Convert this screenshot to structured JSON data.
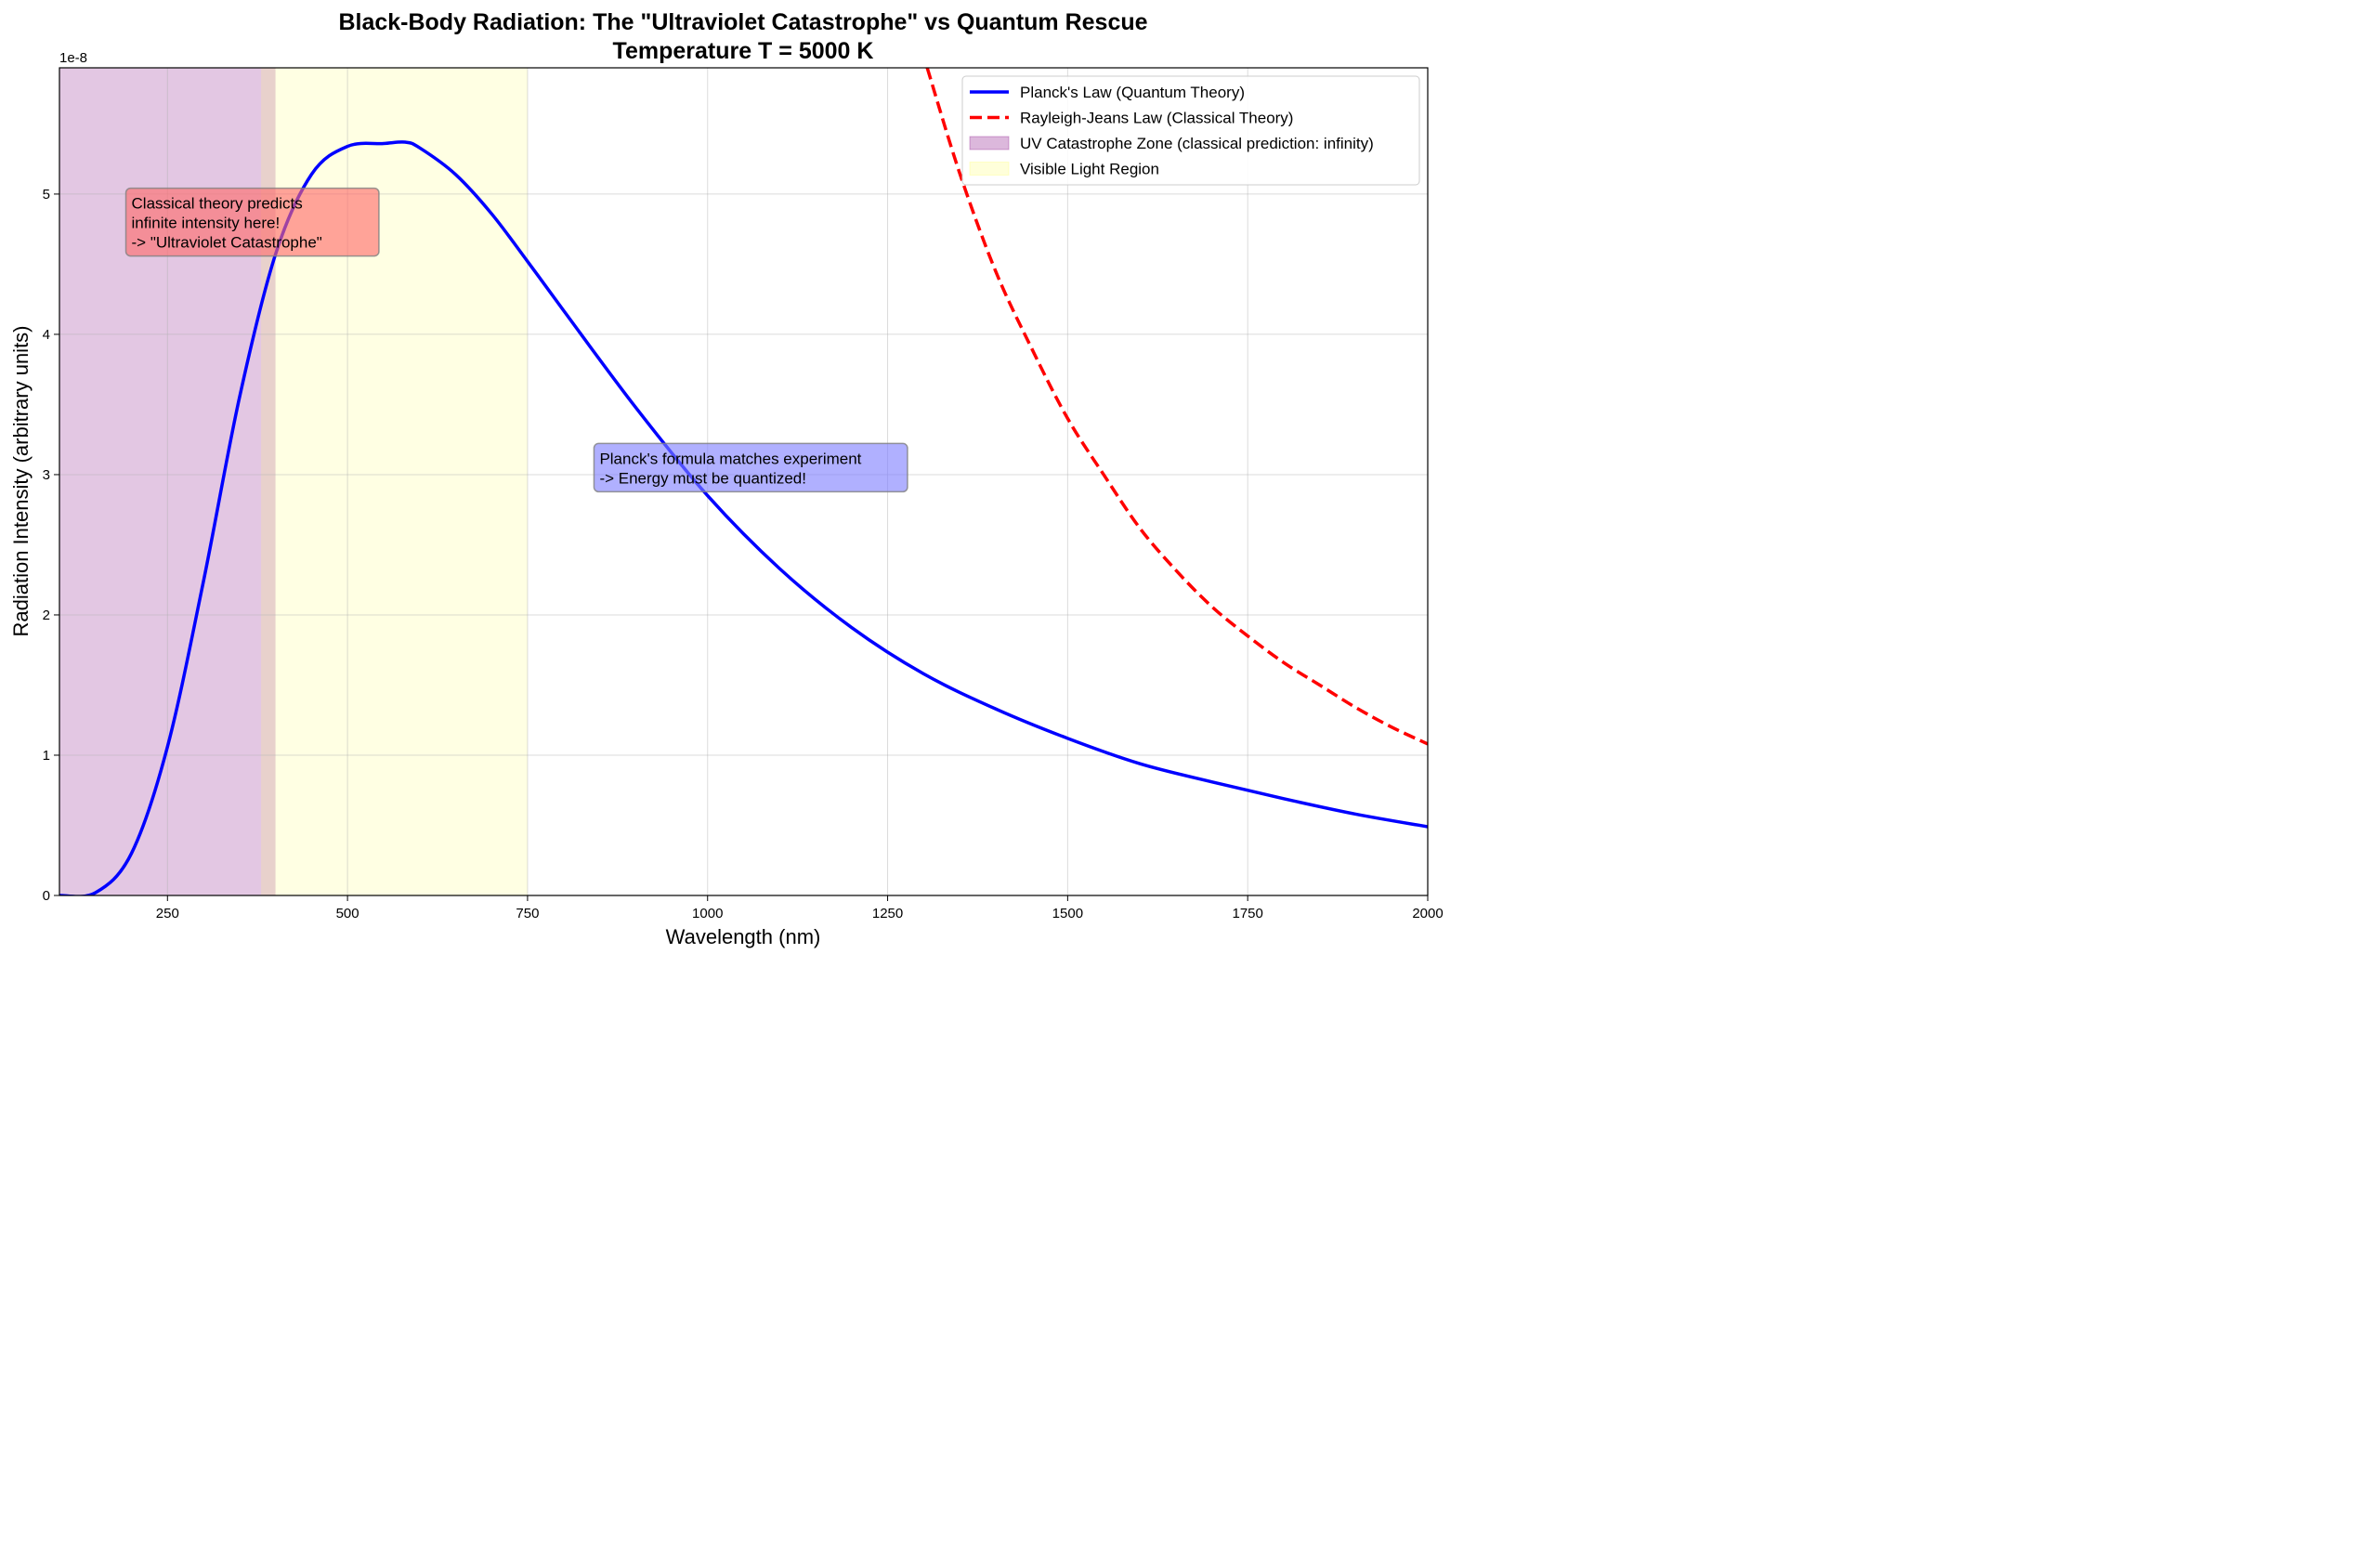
{
  "chart_data": {
    "type": "line",
    "title": "Black-Body Radiation: The \"Ultraviolet Catastrophe\" vs Quantum Rescue",
    "subtitle": "Temperature T = 5000 K",
    "xlabel": "Wavelength (nm)",
    "ylabel": "Radiation Intensity (arbitrary units)",
    "y_multiplier": "1e-8",
    "xlim": [
      100,
      2000
    ],
    "ylim": [
      0,
      5.9
    ],
    "x_ticks": [
      250,
      500,
      750,
      1000,
      1250,
      1500,
      1750,
      2000
    ],
    "x_tick_labels": [
      "250",
      "500",
      "750",
      "1000",
      "1250",
      "1500",
      "1750",
      "2000"
    ],
    "y_ticks": [
      0,
      1,
      2,
      3,
      4,
      5
    ],
    "y_tick_labels": [
      "0",
      "1",
      "2",
      "3",
      "4",
      "5"
    ],
    "grid": true,
    "legend_position": "top-right",
    "series": [
      {
        "name": "Planck's Law (Quantum Theory)",
        "style": "solid",
        "color": "#0000ff",
        "x": [
          100,
          150,
          200,
          250,
          300,
          350,
          400,
          450,
          500,
          550,
          580,
          600,
          650,
          700,
          750,
          800,
          900,
          1000,
          1100,
          1200,
          1300,
          1400,
          1500,
          1600,
          1700,
          1800,
          1900,
          2000
        ],
        "values": [
          0.0,
          0.02,
          0.3,
          1.06,
          2.24,
          3.55,
          4.57,
          5.14,
          5.34,
          5.36,
          5.37,
          5.33,
          5.14,
          4.86,
          4.52,
          4.17,
          3.48,
          2.85,
          2.33,
          1.91,
          1.58,
          1.33,
          1.12,
          0.94,
          0.81,
          0.69,
          0.58,
          0.49
        ]
      },
      {
        "name": "Rayleigh-Jeans Law (Classical Theory)",
        "style": "dashed",
        "color": "#ff0000",
        "x": [
          1305,
          1350,
          1400,
          1450,
          1500,
          1550,
          1600,
          1650,
          1700,
          1750,
          1800,
          1850,
          1900,
          1950,
          2000
        ],
        "values": [
          5.9,
          5.15,
          4.45,
          3.9,
          3.4,
          3.0,
          2.62,
          2.32,
          2.06,
          1.85,
          1.66,
          1.5,
          1.34,
          1.2,
          1.08
        ]
      }
    ],
    "regions": [
      {
        "name": "UV Catastrophe Zone (classical prediction: infinity)",
        "x_start": 100,
        "x_end": 400,
        "color": "#800080",
        "opacity": 0.22
      },
      {
        "name": "Visible Light Region",
        "x_start": 380,
        "x_end": 750,
        "color": "#ffff66",
        "opacity": 0.18
      }
    ],
    "annotations": [
      {
        "lines": [
          "Classical theory predicts",
          "infinite intensity here!",
          "-> \"Ultraviolet Catastrophe\""
        ],
        "x": 200,
        "y": 4.8,
        "color": "#ff6b6b"
      },
      {
        "lines": [
          "Planck's formula matches experiment",
          "-> Energy must be quantized!"
        ],
        "x": 850,
        "y": 3.05,
        "color": "#8080ff"
      }
    ]
  }
}
